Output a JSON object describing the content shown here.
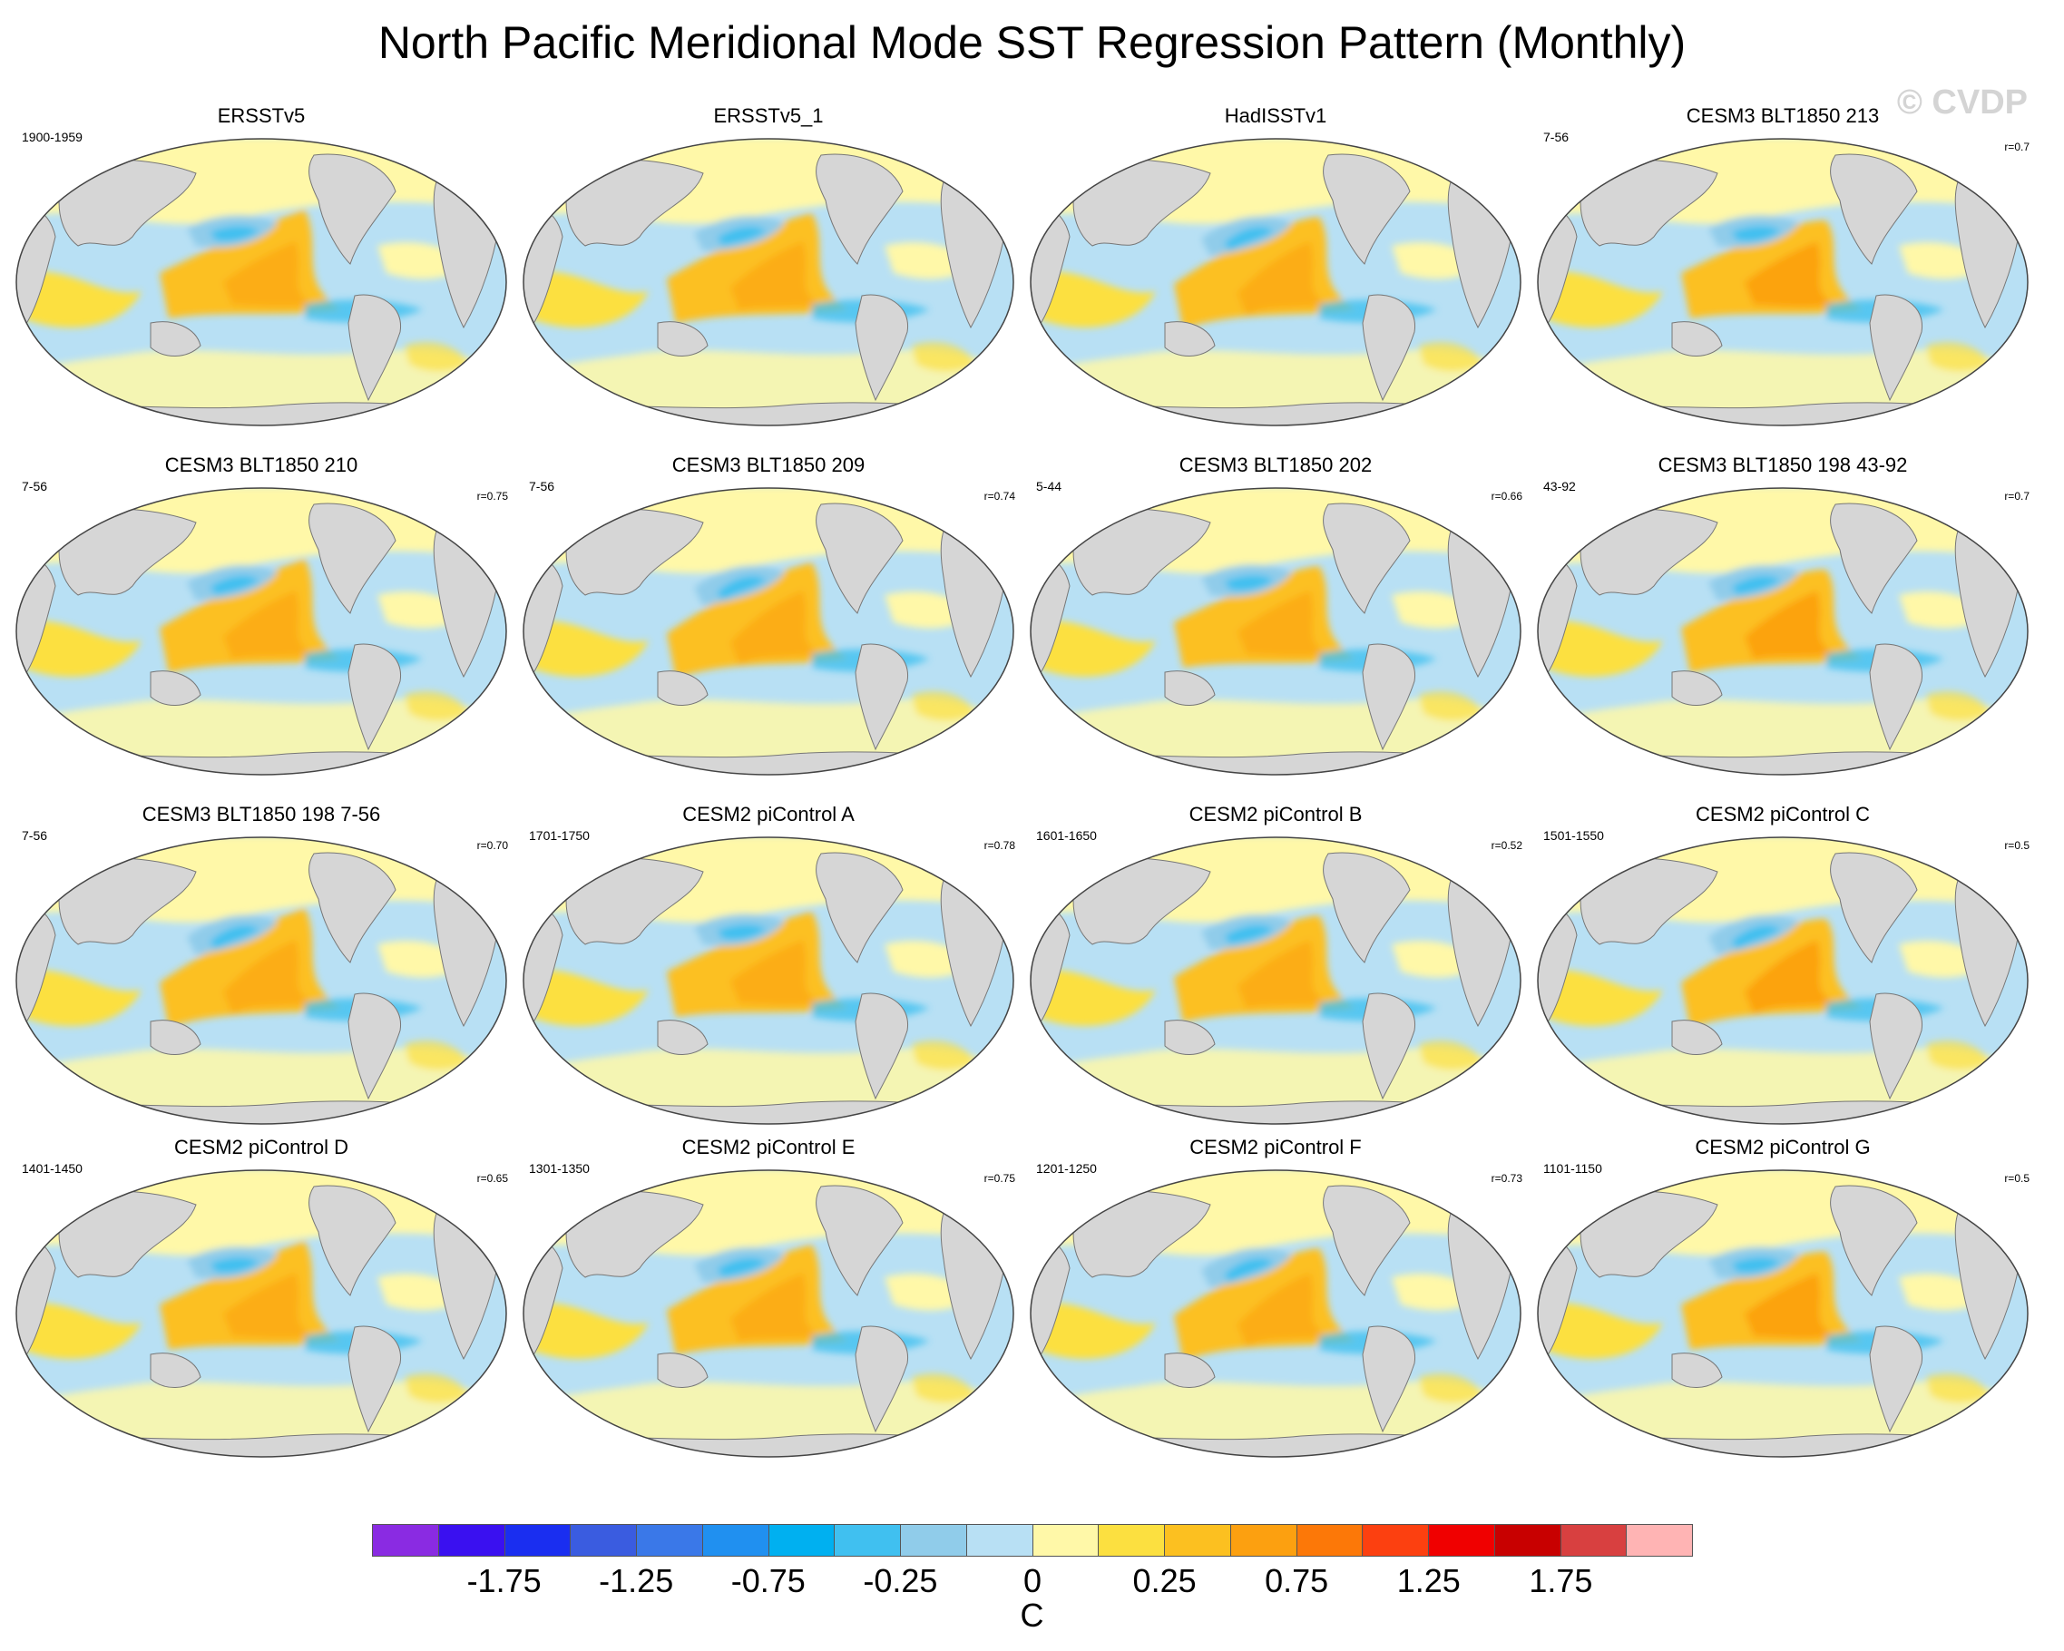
{
  "title": "North Pacific Meridional Mode SST Regression Pattern (Monthly)",
  "watermark": "© CVDP",
  "panels": [
    {
      "title": "ERSSTv5",
      "period": "1900-1959",
      "corr": ""
    },
    {
      "title": "ERSSTv5_1",
      "period": "",
      "corr": ""
    },
    {
      "title": "HadISSTv1",
      "period": "",
      "corr": ""
    },
    {
      "title": "CESM3 BLT1850 213",
      "period": "7-56",
      "corr": "r=0.7"
    },
    {
      "title": "CESM3 BLT1850 210",
      "period": "7-56",
      "corr": "r=0.75"
    },
    {
      "title": "CESM3 BLT1850 209",
      "period": "7-56",
      "corr": "r=0.74"
    },
    {
      "title": "CESM3 BLT1850 202",
      "period": "5-44",
      "corr": "r=0.66"
    },
    {
      "title": "CESM3 BLT1850 198 43-92",
      "period": "43-92",
      "corr": "r=0.7"
    },
    {
      "title": "CESM3 BLT1850 198 7-56",
      "period": "7-56",
      "corr": "r=0.70"
    },
    {
      "title": "CESM2 piControl A",
      "period": "1701-1750",
      "corr": "r=0.78"
    },
    {
      "title": "CESM2 piControl B",
      "period": "1601-1650",
      "corr": "r=0.52"
    },
    {
      "title": "CESM2 piControl C",
      "period": "1501-1550",
      "corr": "r=0.5"
    },
    {
      "title": "CESM2 piControl D",
      "period": "1401-1450",
      "corr": "r=0.65"
    },
    {
      "title": "CESM2 piControl E",
      "period": "1301-1350",
      "corr": "r=0.75"
    },
    {
      "title": "CESM2 piControl F",
      "period": "1201-1250",
      "corr": "r=0.73"
    },
    {
      "title": "CESM2 piControl G",
      "period": "1101-1150",
      "corr": "r=0.5"
    }
  ],
  "colorbar": {
    "colors": [
      "#8a2be2",
      "#3a10f0",
      "#1a2ef0",
      "#3a5ce0",
      "#3a78e8",
      "#2090f0",
      "#00b0f0",
      "#40c0f0",
      "#90ccea",
      "#b8e0f4",
      "#fff8a8",
      "#fce040",
      "#fcc020",
      "#fca010",
      "#fc7808",
      "#fc4010",
      "#f00000",
      "#c80000",
      "#d84040",
      "#ffb4b4"
    ],
    "labels": [
      "-1.75",
      "-1.25",
      "-0.75",
      "-0.25",
      "0",
      "0.25",
      "0.75",
      "1.25",
      "1.75"
    ],
    "unit": "C"
  },
  "colors": {
    "ocean_base": "#b8e0f4",
    "land": "#d6d6d6",
    "warm_light": "#fff8a8",
    "warm_mid": "#fce040",
    "warm_strong": "#fcc020",
    "warm_orange": "#fca010",
    "cool_mid": "#90ccea",
    "cool_strong": "#40c0f0"
  }
}
